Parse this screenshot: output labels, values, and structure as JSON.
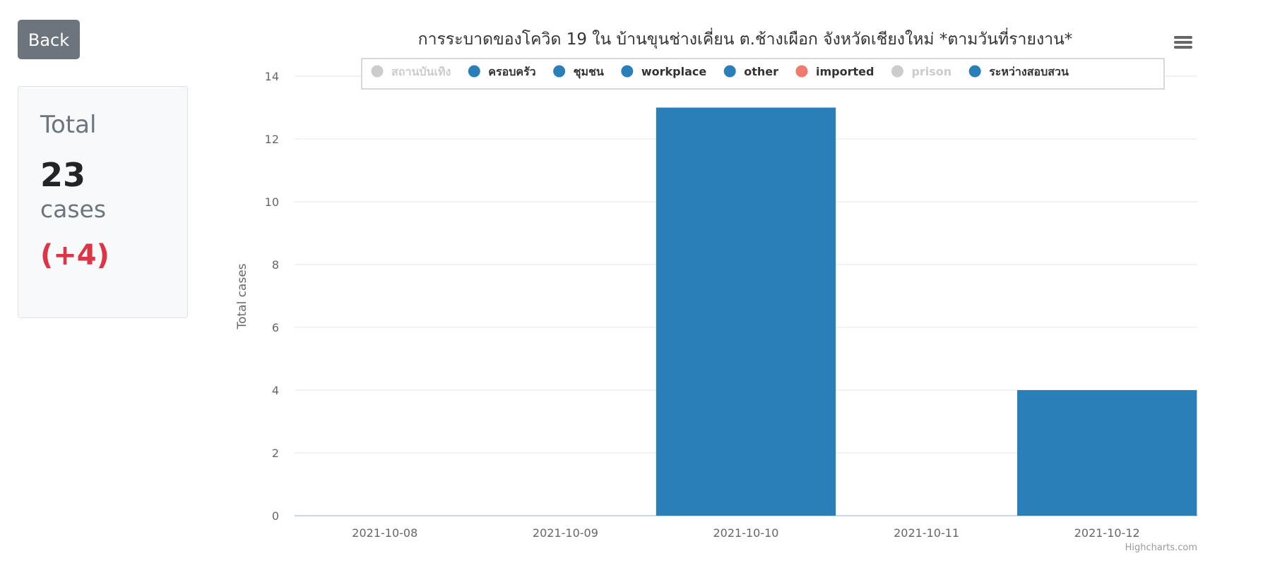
{
  "back_button": {
    "label": "Back"
  },
  "summary": {
    "label": "Total",
    "value": "23",
    "unit": "cases",
    "delta": "(+4)"
  },
  "chart_data": {
    "type": "bar",
    "title": "การระบาดของโควิด 19 ใน บ้านขุนช่างเคี่ยน ต.ช้างเผือก จังหวัดเชียงใหม่ *ตามวันที่รายงาน*",
    "ylabel": "Total cases",
    "xlabel": "",
    "ylim": [
      0,
      14
    ],
    "yticks": [
      0,
      2,
      4,
      6,
      8,
      10,
      12,
      14
    ],
    "grid": true,
    "legend_placement": "top-center",
    "categories": [
      "2021-10-08",
      "2021-10-09",
      "2021-10-10",
      "2021-10-11",
      "2021-10-12"
    ],
    "series": [
      {
        "name": "สถานบันเทิง",
        "color": "#cccccc",
        "visible": false,
        "values": [
          0,
          0,
          0,
          0,
          0
        ]
      },
      {
        "name": "ครอบครัว",
        "color": "#2a7fb8",
        "visible": true,
        "values": [
          0,
          0,
          0,
          0,
          0
        ]
      },
      {
        "name": "ชุมชน",
        "color": "#2a7fb8",
        "visible": true,
        "values": [
          0,
          0,
          0,
          0,
          0
        ]
      },
      {
        "name": "workplace",
        "color": "#2a7fb8",
        "visible": true,
        "values": [
          0,
          0,
          0,
          0,
          0
        ]
      },
      {
        "name": "other",
        "color": "#2a7fb8",
        "visible": true,
        "values": [
          0,
          0,
          13,
          0,
          4
        ]
      },
      {
        "name": "imported",
        "color": "#f07a6d",
        "visible": true,
        "values": [
          0,
          0,
          0,
          0,
          0
        ]
      },
      {
        "name": "prison",
        "color": "#cccccc",
        "visible": false,
        "values": [
          0,
          0,
          0,
          0,
          0
        ]
      },
      {
        "name": "ระหว่างสอบสวน",
        "color": "#2a7fb8",
        "visible": true,
        "values": [
          0,
          0,
          0,
          0,
          0
        ]
      }
    ],
    "credits": "Highcharts.com"
  },
  "colors": {
    "bar": "#2a7fb8",
    "hidden_legend": "#cccccc",
    "grid": "#e6e6e6",
    "axis_line": "#ccd6eb"
  },
  "icons": {
    "menu": "hamburger-menu-icon"
  }
}
